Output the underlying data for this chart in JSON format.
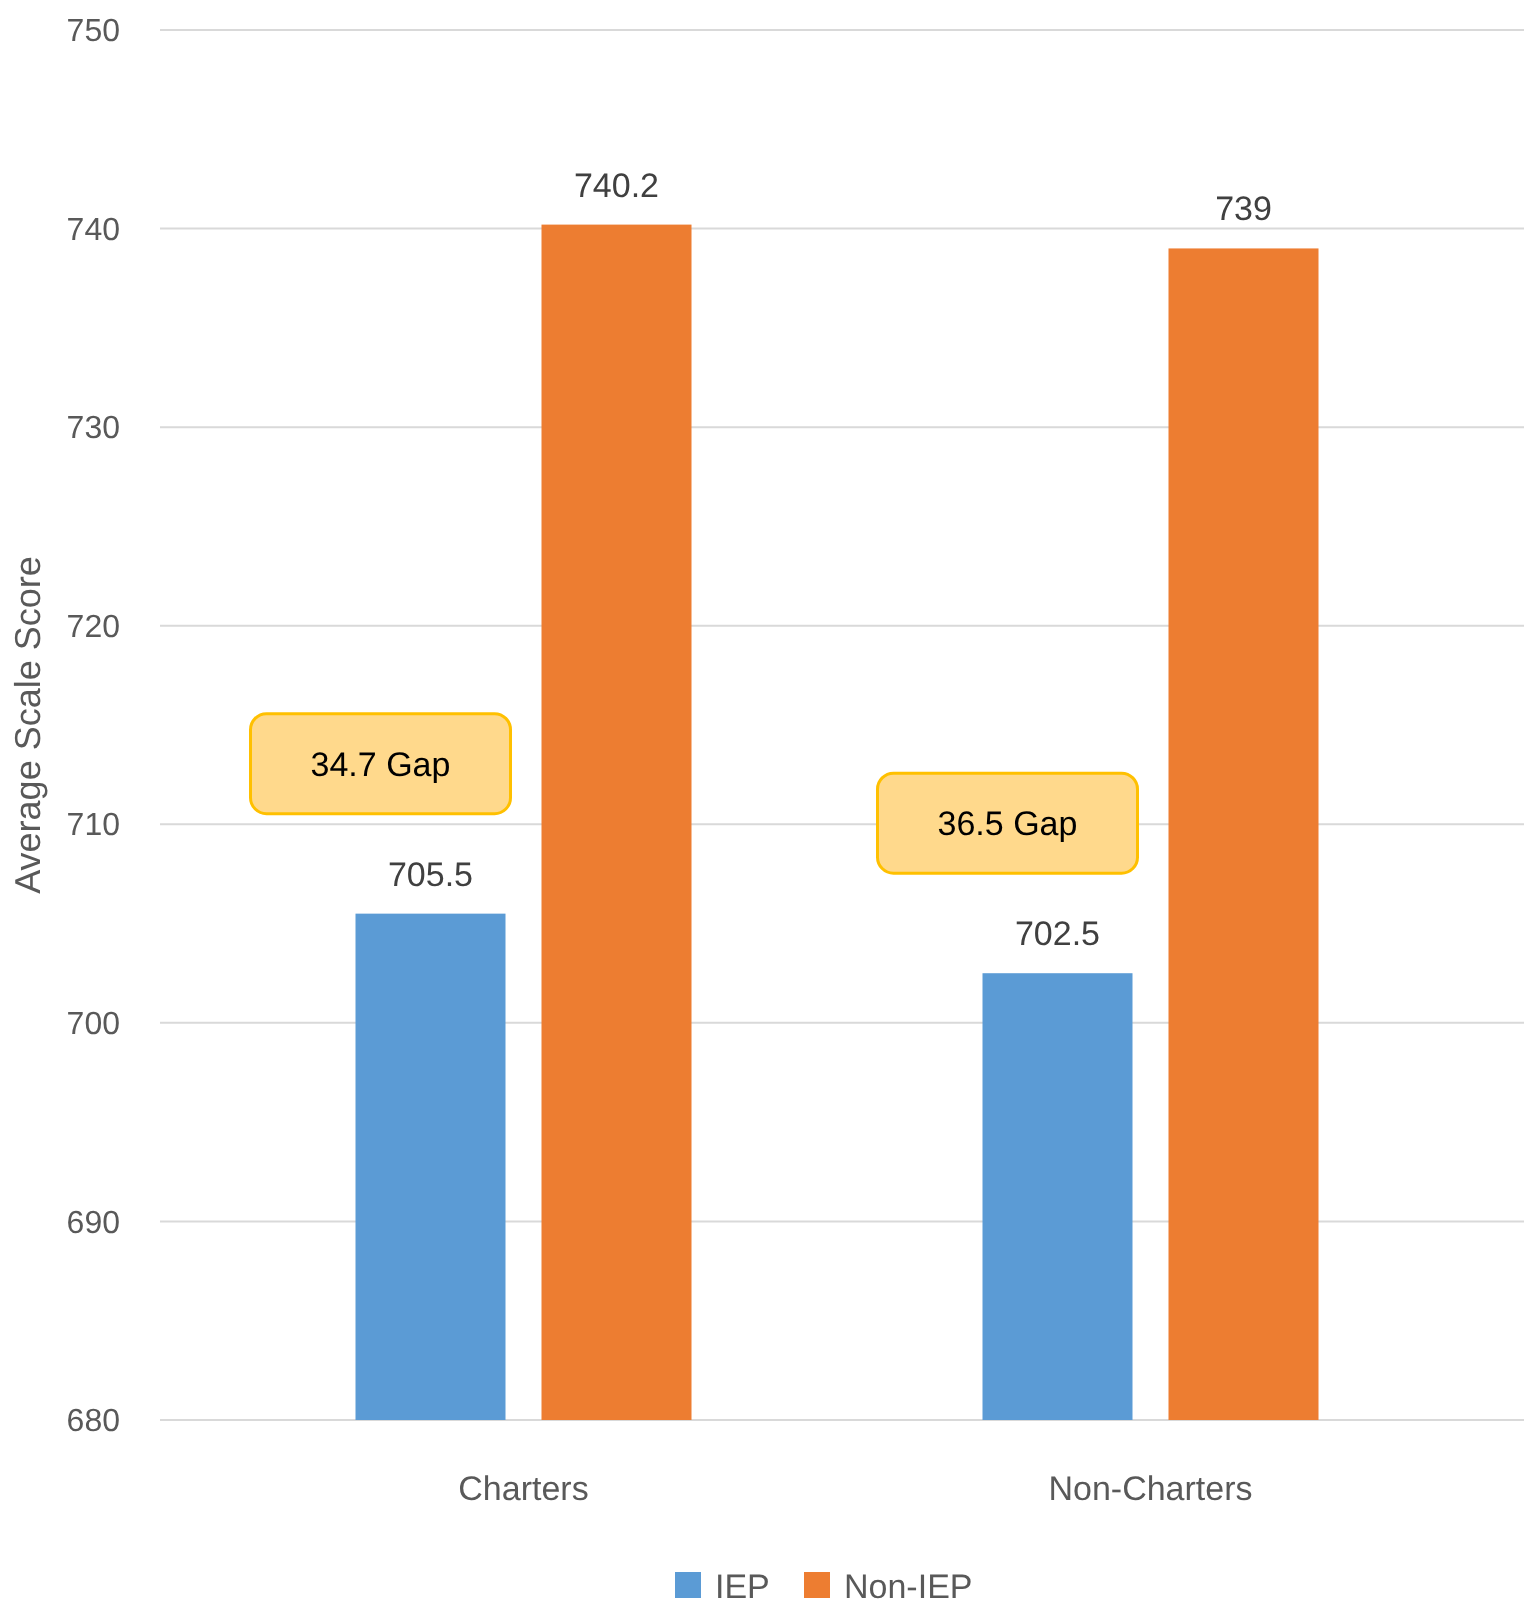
{
  "chart_data": {
    "type": "bar",
    "ylabel": "Average Scale Score",
    "categories": [
      "Charters",
      "Non-Charters"
    ],
    "series": [
      {
        "name": "IEP",
        "color": "#5b9bd5",
        "values": [
          705.5,
          702.5
        ]
      },
      {
        "name": "Non-IEP",
        "color": "#ed7d31",
        "values": [
          740.2,
          739
        ]
      }
    ],
    "ylim": [
      680,
      750
    ],
    "yticks": [
      680,
      690,
      700,
      710,
      720,
      730,
      740,
      750
    ],
    "grid": "y",
    "legend": "bottom",
    "data_labels": true,
    "annotations": [
      "34.7 Gap",
      "36.5 Gap"
    ]
  }
}
